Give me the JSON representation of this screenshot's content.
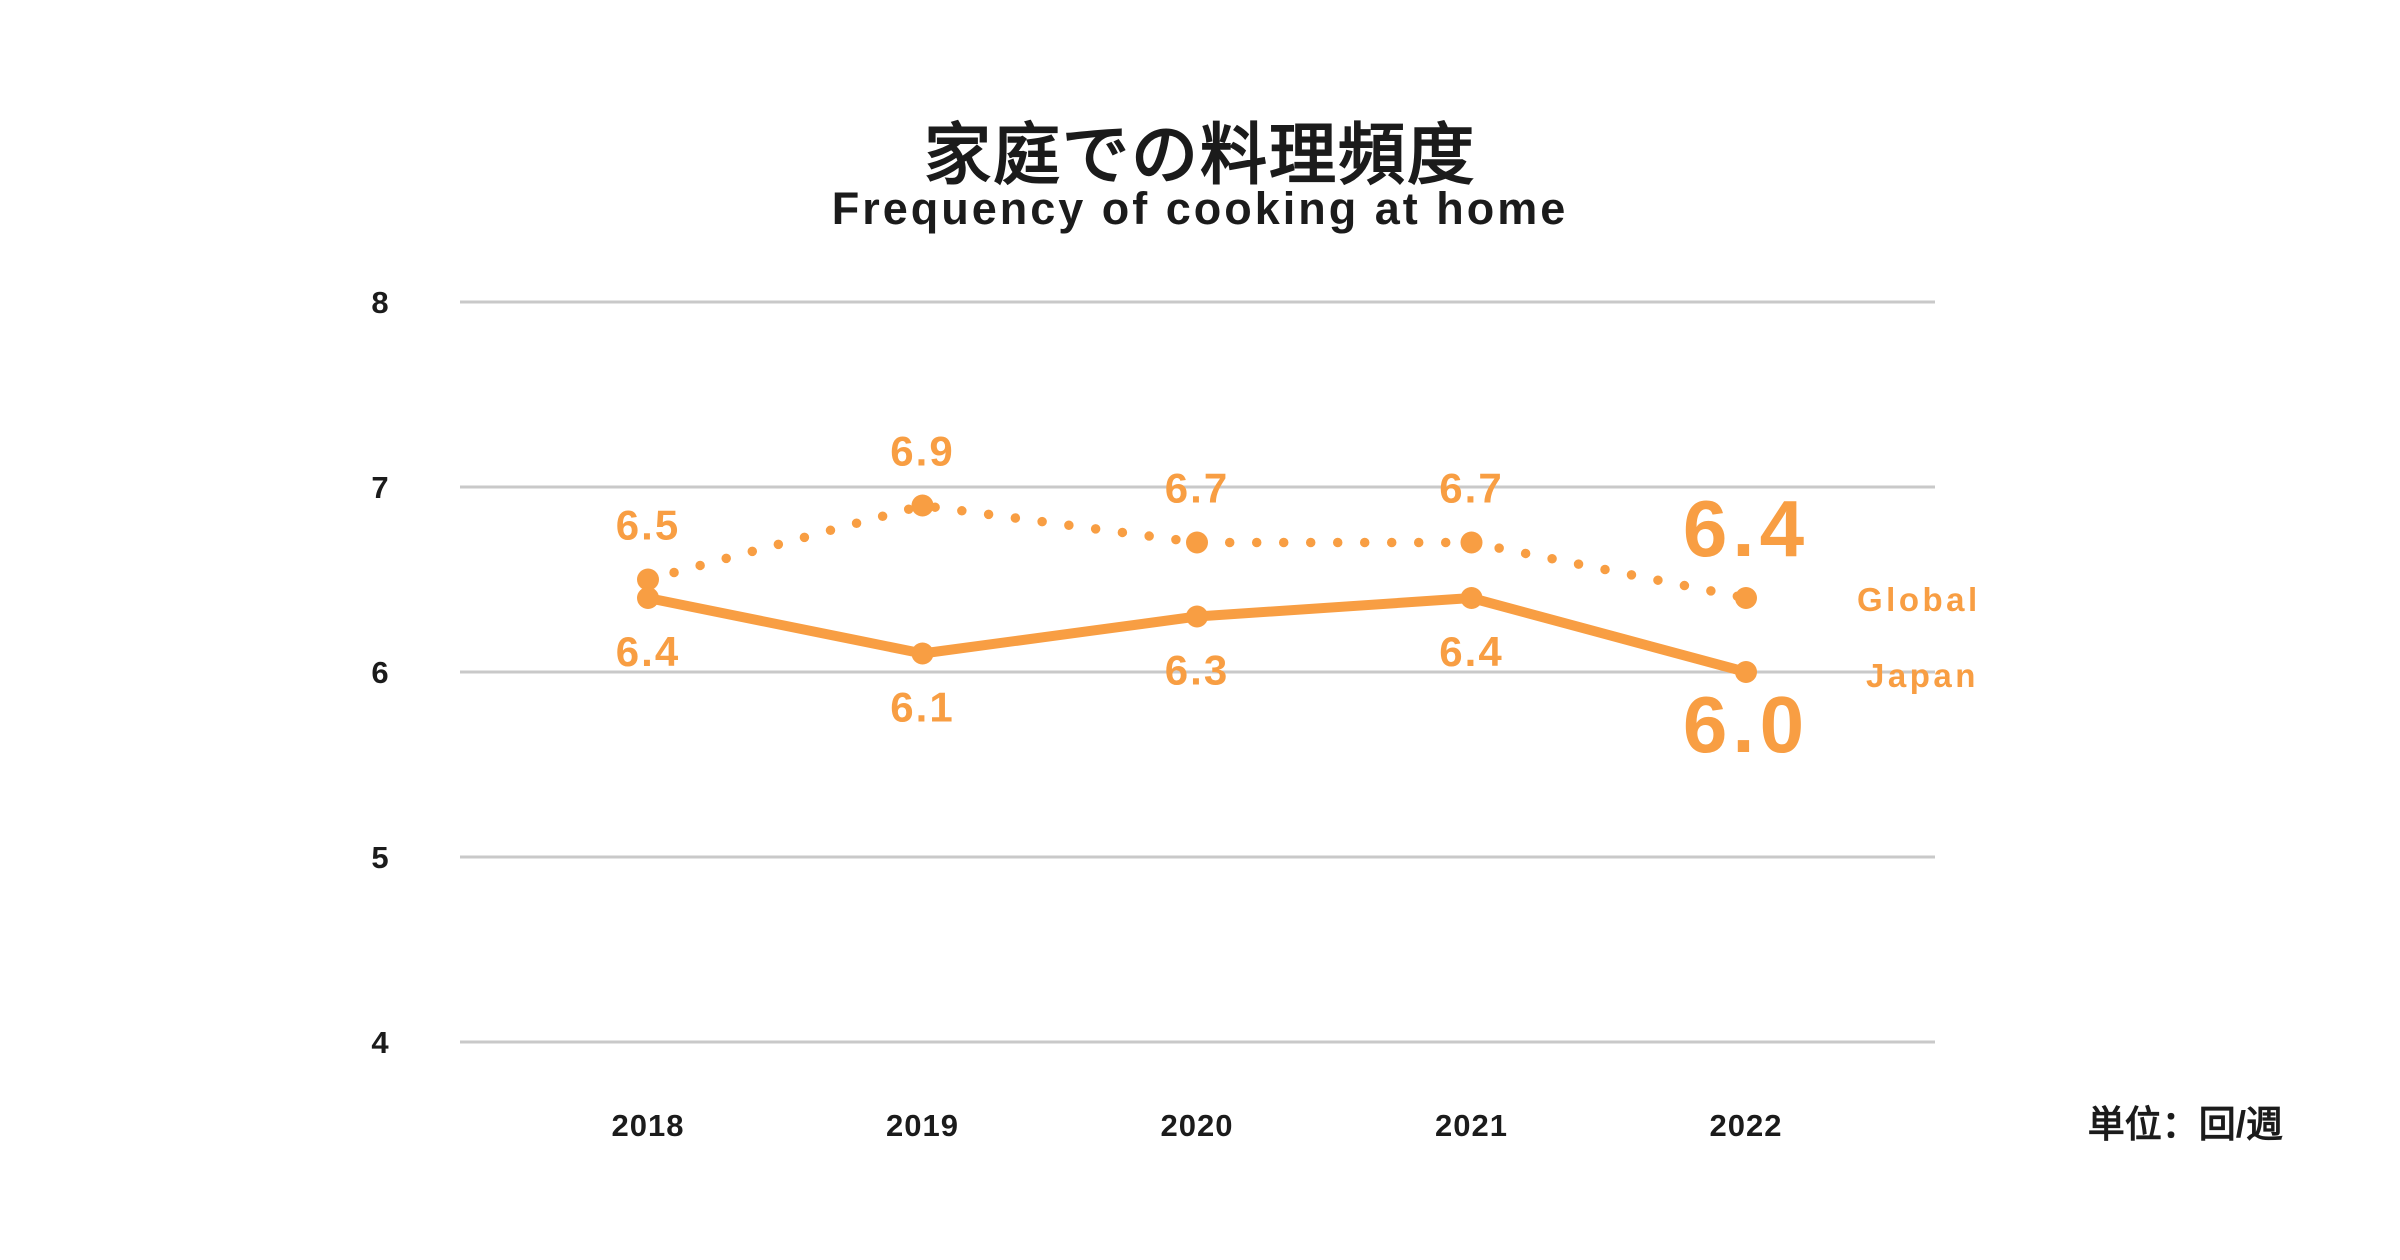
{
  "chart_data": {
    "type": "line",
    "title": "家庭での料理頻度",
    "subtitle": "Frequency of cooking at home",
    "unit_label": "単位：回/週",
    "categories": [
      "2018",
      "2019",
      "2020",
      "2021",
      "2022"
    ],
    "y_ticks": [
      "8",
      "7",
      "6",
      "5",
      "4"
    ],
    "ylim": [
      4,
      8
    ],
    "grid": "horizontal",
    "legend_position": "right-of-line-ends",
    "series": [
      {
        "name": "Global",
        "style": "dotted",
        "label_position": "above",
        "values": [
          6.5,
          6.9,
          6.7,
          6.7,
          6.4
        ]
      },
      {
        "name": "Japan",
        "style": "solid",
        "label_position": "below",
        "values": [
          6.4,
          6.1,
          6.3,
          6.4,
          6.0
        ]
      }
    ],
    "colors": {
      "accent": "#F89E43",
      "grid": "#C9C9C9",
      "text": "#1B1B1B",
      "background": "#FFFFFF"
    }
  }
}
